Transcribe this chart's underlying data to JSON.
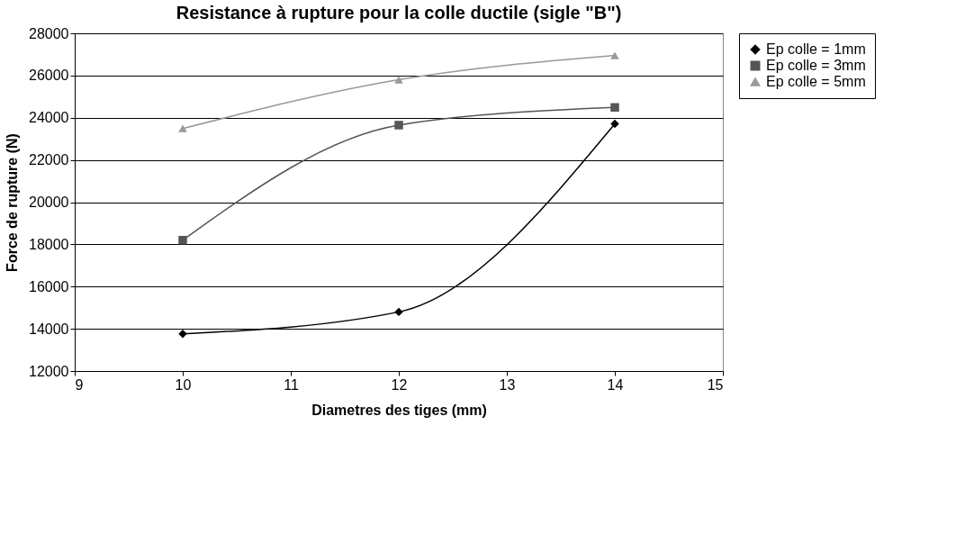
{
  "chart_data": {
    "type": "line",
    "title": "Resistance à rupture pour la colle ductile (sigle \"B\")",
    "xlabel": "Diametres des tiges (mm)",
    "ylabel": "Force de rupture (N)",
    "x": [
      10,
      12,
      14
    ],
    "series": [
      {
        "name": "Ep colle = 1mm",
        "color": "#000000",
        "marker": "diamond",
        "values": [
          13760,
          14800,
          23710
        ]
      },
      {
        "name": "Ep colle = 3mm",
        "color": "#555555",
        "marker": "square",
        "values": [
          18200,
          23650,
          24490
        ]
      },
      {
        "name": "Ep colle = 5mm",
        "color": "#999999",
        "marker": "triangle",
        "values": [
          23490,
          25800,
          26950
        ]
      }
    ],
    "xlim": [
      9,
      15
    ],
    "xticks": [
      9,
      10,
      11,
      12,
      13,
      14,
      15
    ],
    "ylim": [
      12000,
      28000
    ],
    "yticks": [
      12000,
      14000,
      16000,
      18000,
      20000,
      22000,
      24000,
      26000,
      28000
    ],
    "grid": "y",
    "legend": "right",
    "line_style": "solid"
  }
}
